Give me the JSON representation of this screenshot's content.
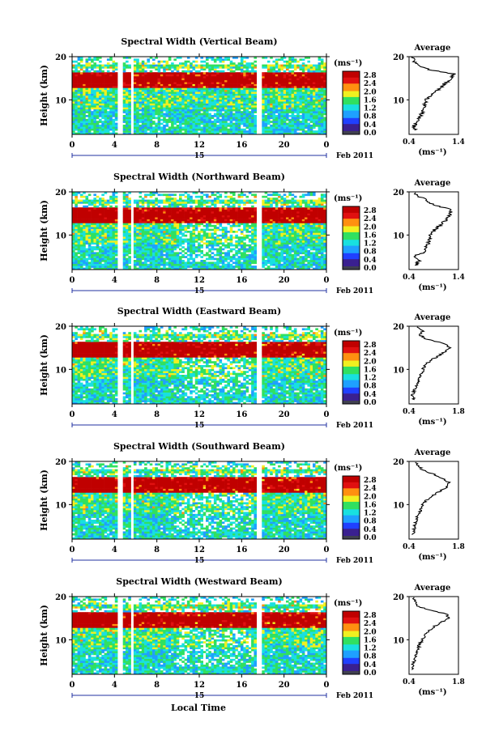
{
  "figure": {
    "x_axis_label": "Local Time",
    "date_label": "Feb 2011",
    "day_label": "15",
    "colorbar_unit": "(ms⁻¹)",
    "colorbar_ticks": [
      "0.0",
      "0.4",
      "0.8",
      "1.2",
      "1.6",
      "2.0",
      "2.4",
      "2.8"
    ],
    "avg_title": "Average",
    "avg_xunit": "(ms⁻¹)",
    "colormap": [
      "#3a2090",
      "#2040ff",
      "#1fa0ff",
      "#18e0e0",
      "#30e060",
      "#f0f020",
      "#ff9010",
      "#e01010",
      "#c00000"
    ]
  },
  "chart_data": [
    {
      "type": "heatmap",
      "title": "Spectral Width (Vertical Beam)",
      "xlabel": "",
      "ylabel": "Height (km)",
      "x_range": [
        0,
        24
      ],
      "y_range": [
        2,
        20
      ],
      "x_ticks": [
        "0",
        "4",
        "8",
        "12",
        "16",
        "20",
        "0"
      ],
      "y_ticks": [
        "10",
        "20"
      ],
      "gaps_hours": [
        [
          4.3,
          4.8
        ],
        [
          5.6,
          5.9
        ],
        [
          17.4,
          17.9
        ]
      ],
      "profile": {
        "title": "Average",
        "xlim": [
          0.4,
          1.4
        ],
        "x_ticks": [
          "0.4",
          "1.4"
        ],
        "ylim": [
          2,
          20
        ],
        "heights": [
          3,
          4,
          5,
          6,
          7,
          8,
          9,
          10,
          11,
          12,
          13,
          14,
          15,
          16,
          17,
          18,
          19,
          20
        ],
        "values": [
          0.55,
          0.5,
          0.6,
          0.62,
          0.65,
          0.7,
          0.72,
          0.75,
          0.85,
          0.95,
          1.05,
          1.15,
          1.25,
          1.3,
          0.8,
          0.6,
          0.5,
          0.45
        ]
      }
    },
    {
      "type": "heatmap",
      "title": "Spectral Width (Northward Beam)",
      "xlabel": "",
      "ylabel": "Height (km)",
      "x_range": [
        0,
        24
      ],
      "y_range": [
        2,
        20
      ],
      "x_ticks": [
        "0",
        "4",
        "8",
        "12",
        "16",
        "20",
        "0"
      ],
      "y_ticks": [
        "10",
        "20"
      ],
      "gaps_hours": [
        [
          4.3,
          4.8
        ],
        [
          5.6,
          5.9
        ],
        [
          17.4,
          17.9
        ]
      ],
      "profile": {
        "title": "Average",
        "xlim": [
          0.4,
          1.4
        ],
        "x_ticks": [
          "0.4",
          "1.4"
        ],
        "ylim": [
          2,
          20
        ],
        "heights": [
          3,
          4,
          5,
          6,
          7,
          8,
          9,
          10,
          11,
          12,
          13,
          14,
          15,
          16,
          17,
          18,
          19,
          20
        ],
        "values": [
          0.55,
          0.6,
          0.5,
          0.7,
          0.72,
          0.78,
          0.8,
          0.85,
          0.9,
          1.0,
          1.1,
          1.2,
          1.25,
          1.2,
          0.9,
          0.75,
          0.6,
          0.5
        ]
      }
    },
    {
      "type": "heatmap",
      "title": "Spectral Width (Eastward Beam)",
      "xlabel": "",
      "ylabel": "Height (km)",
      "x_range": [
        0,
        24
      ],
      "y_range": [
        2,
        20
      ],
      "x_ticks": [
        "0",
        "4",
        "8",
        "12",
        "16",
        "20",
        "0"
      ],
      "y_ticks": [
        "10",
        "20"
      ],
      "gaps_hours": [
        [
          4.3,
          4.8
        ],
        [
          5.6,
          5.9
        ],
        [
          17.4,
          17.9
        ]
      ],
      "profile": {
        "title": "Average",
        "xlim": [
          0.4,
          1.8
        ],
        "x_ticks": [
          "0.4",
          "1.8"
        ],
        "ylim": [
          2,
          20
        ],
        "heights": [
          3,
          4,
          5,
          6,
          7,
          8,
          9,
          10,
          11,
          12,
          13,
          14,
          15,
          16,
          17,
          18,
          19,
          20
        ],
        "values": [
          0.55,
          0.5,
          0.55,
          0.6,
          0.65,
          0.7,
          0.75,
          0.8,
          0.85,
          1.0,
          1.2,
          1.4,
          1.55,
          1.4,
          0.9,
          0.7,
          0.8,
          0.6
        ]
      }
    },
    {
      "type": "heatmap",
      "title": "Spectral Width (Southward Beam)",
      "xlabel": "",
      "ylabel": "Height (km)",
      "x_range": [
        0,
        24
      ],
      "y_range": [
        2,
        20
      ],
      "x_ticks": [
        "0",
        "4",
        "8",
        "12",
        "16",
        "20",
        "0"
      ],
      "y_ticks": [
        "10",
        "20"
      ],
      "gaps_hours": [
        [
          4.3,
          4.8
        ],
        [
          5.6,
          5.9
        ],
        [
          17.4,
          17.9
        ]
      ],
      "profile": {
        "title": "Average",
        "xlim": [
          0.4,
          1.8
        ],
        "x_ticks": [
          "0.4",
          "1.8"
        ],
        "ylim": [
          2,
          20
        ],
        "heights": [
          3,
          4,
          5,
          6,
          7,
          8,
          9,
          10,
          11,
          12,
          13,
          14,
          15,
          16,
          17,
          18,
          19,
          20
        ],
        "values": [
          0.5,
          0.55,
          0.55,
          0.6,
          0.62,
          0.68,
          0.75,
          0.8,
          0.9,
          1.05,
          1.25,
          1.45,
          1.55,
          1.35,
          1.1,
          0.8,
          0.65,
          0.6
        ]
      }
    },
    {
      "type": "heatmap",
      "title": "Spectral Width (Westward Beam)",
      "xlabel": "Local Time",
      "ylabel": "Height (km)",
      "x_range": [
        0,
        24
      ],
      "y_range": [
        2,
        20
      ],
      "x_ticks": [
        "0",
        "4",
        "8",
        "12",
        "16",
        "20",
        "0"
      ],
      "y_ticks": [
        "10",
        "20"
      ],
      "gaps_hours": [
        [
          4.3,
          4.8
        ],
        [
          5.6,
          5.9
        ],
        [
          17.4,
          17.9
        ]
      ],
      "profile": {
        "title": "Average",
        "xlim": [
          0.4,
          1.8
        ],
        "x_ticks": [
          "0.4",
          "1.8"
        ],
        "ylim": [
          2,
          20
        ],
        "heights": [
          3,
          4,
          5,
          6,
          7,
          8,
          9,
          10,
          11,
          12,
          13,
          14,
          15,
          16,
          17,
          18,
          19,
          20
        ],
        "values": [
          0.5,
          0.5,
          0.55,
          0.6,
          0.62,
          0.66,
          0.7,
          0.78,
          0.85,
          0.95,
          1.1,
          1.3,
          1.55,
          1.45,
          0.9,
          0.6,
          0.55,
          0.5
        ]
      }
    }
  ]
}
